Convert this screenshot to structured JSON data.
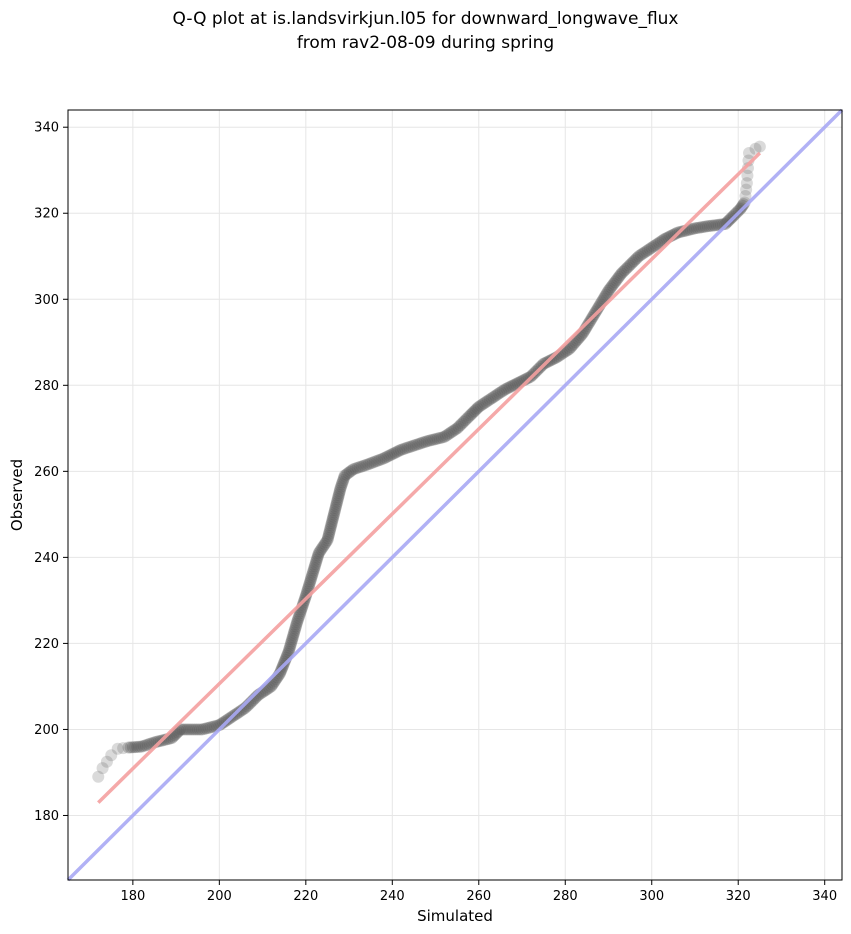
{
  "chart_data": {
    "type": "scatter",
    "title_line1": "Q-Q plot at is.landsvirkjun.l05 for downward_longwave_flux",
    "title_line2": "from rav2-08-09 during spring",
    "xlabel": "Simulated",
    "ylabel": "Observed",
    "xlim": [
      165,
      344
    ],
    "ylim": [
      165,
      344
    ],
    "x_ticks": [
      180,
      200,
      220,
      240,
      260,
      280,
      300,
      320,
      340
    ],
    "y_ticks": [
      180,
      200,
      220,
      240,
      260,
      280,
      300,
      320,
      340
    ],
    "grid": true,
    "colors": {
      "points": "#555555",
      "fit_line": "#f4a0a0",
      "identity_line": "#a8a8f4",
      "frame": "#000000",
      "grid": "#e6e6e6"
    },
    "fit_line": {
      "x": [
        172,
        325
      ],
      "y": [
        183,
        334
      ]
    },
    "identity_line": {
      "x": [
        165,
        344
      ],
      "y": [
        165,
        344
      ]
    },
    "quantile_curve": [
      [
        172,
        189
      ],
      [
        173,
        191
      ],
      [
        175,
        194
      ],
      [
        176.5,
        195.5
      ],
      [
        179,
        195.8
      ],
      [
        182,
        196
      ],
      [
        185,
        197
      ],
      [
        187,
        197.5
      ],
      [
        189,
        198
      ],
      [
        191,
        200
      ],
      [
        196,
        200
      ],
      [
        200,
        201
      ],
      [
        203,
        203
      ],
      [
        206,
        205
      ],
      [
        209,
        208
      ],
      [
        212,
        210
      ],
      [
        214,
        213
      ],
      [
        216,
        218
      ],
      [
        218,
        225
      ],
      [
        220,
        231
      ],
      [
        221.5,
        236
      ],
      [
        223,
        241
      ],
      [
        225,
        244
      ],
      [
        226,
        248
      ],
      [
        227,
        252
      ],
      [
        228,
        256
      ],
      [
        229,
        259
      ],
      [
        231,
        260.5
      ],
      [
        234,
        261.5
      ],
      [
        238,
        263
      ],
      [
        242,
        265
      ],
      [
        245,
        266
      ],
      [
        248,
        267
      ],
      [
        252,
        268
      ],
      [
        255,
        270
      ],
      [
        258,
        273
      ],
      [
        260,
        275
      ],
      [
        263,
        277
      ],
      [
        266,
        279
      ],
      [
        269,
        280.5
      ],
      [
        272,
        282
      ],
      [
        275,
        285
      ],
      [
        278,
        286.5
      ],
      [
        281,
        288.5
      ],
      [
        284,
        292
      ],
      [
        287,
        297
      ],
      [
        290,
        302
      ],
      [
        293,
        306
      ],
      [
        297,
        310
      ],
      [
        300,
        312
      ],
      [
        303,
        314
      ],
      [
        306,
        315.5
      ],
      [
        310,
        316.5
      ],
      [
        313,
        317
      ],
      [
        317,
        317.5
      ],
      [
        319,
        319.5
      ],
      [
        320.5,
        321
      ],
      [
        321.5,
        322.5
      ],
      [
        322,
        327
      ],
      [
        322.5,
        334
      ],
      [
        324,
        335
      ],
      [
        325,
        335.5
      ]
    ]
  }
}
